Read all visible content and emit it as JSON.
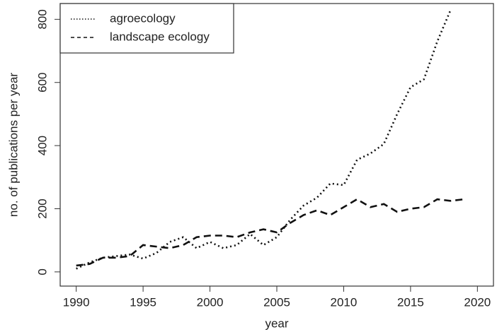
{
  "chart_data": {
    "type": "line",
    "x": [
      1990,
      1991,
      1992,
      1993,
      1994,
      1995,
      1996,
      1997,
      1998,
      1999,
      2000,
      2001,
      2002,
      2003,
      2004,
      2005,
      2006,
      2007,
      2008,
      2009,
      2010,
      2011,
      2012,
      2013,
      2014,
      2015,
      2016,
      2017,
      2018,
      2019
    ],
    "series": [
      {
        "name": "agroecology",
        "color": "#111111",
        "dash": "dotted",
        "values": [
          10,
          30,
          45,
          50,
          55,
          42,
          60,
          95,
          110,
          75,
          95,
          75,
          85,
          120,
          85,
          110,
          165,
          210,
          235,
          280,
          275,
          355,
          375,
          405,
          500,
          585,
          610,
          730,
          830,
          null
        ]
      },
      {
        "name": "landscape ecology",
        "color": "#111111",
        "dash": "dashed",
        "values": [
          20,
          25,
          45,
          45,
          50,
          85,
          80,
          75,
          85,
          110,
          115,
          115,
          110,
          125,
          135,
          125,
          155,
          180,
          195,
          180,
          205,
          230,
          205,
          215,
          190,
          200,
          205,
          230,
          225,
          230
        ]
      }
    ],
    "xlabel": "year",
    "ylabel": "no. of publications per year",
    "xlim": [
      1988.8,
      2021.2
    ],
    "ylim": [
      -45,
      850
    ],
    "xticks": [
      1990,
      1995,
      2000,
      2005,
      2010,
      2015,
      2020
    ],
    "yticks": [
      0,
      200,
      400,
      600,
      800
    ],
    "legend": "top-left"
  }
}
